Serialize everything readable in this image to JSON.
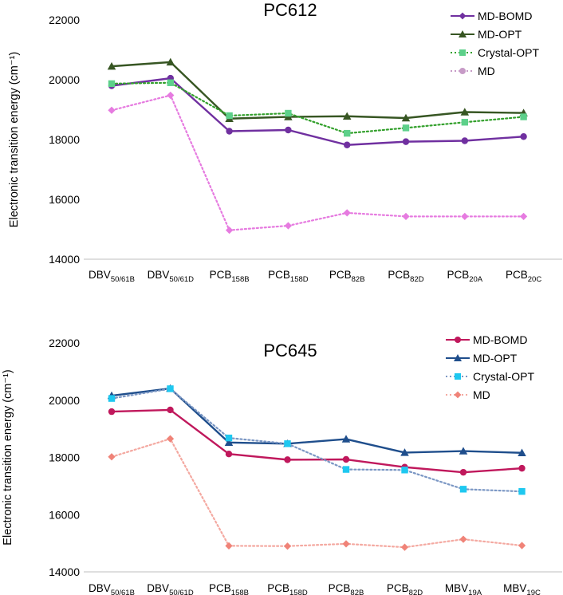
{
  "chart_data": [
    {
      "type": "line",
      "title": "PC612",
      "ylabel": "Electronic transition energy (cm⁻¹)",
      "xlabel": "",
      "ylim": [
        14000,
        22000
      ],
      "yticks": [
        "14000",
        "16000",
        "18000",
        "20000",
        "22000"
      ],
      "categories": [
        {
          "base": "DBV",
          "sub": "50/61B"
        },
        {
          "base": "DBV",
          "sub": "50/61D"
        },
        {
          "base": "PCB",
          "sub": "158B"
        },
        {
          "base": "PCB",
          "sub": "158D"
        },
        {
          "base": "PCB",
          "sub": "82B"
        },
        {
          "base": "PCB",
          "sub": "82D"
        },
        {
          "base": "PCB",
          "sub": "20A"
        },
        {
          "base": "PCB",
          "sub": "20C"
        }
      ],
      "legend_position": "top-right",
      "series": [
        {
          "name": "MD-BOMD",
          "color": "#7030a0",
          "marker": "circle",
          "dashed": false,
          "legend_marker": "diamond",
          "values": [
            19800,
            20050,
            18280,
            18320,
            17820,
            17930,
            17960,
            18100
          ]
        },
        {
          "name": "MD-OPT",
          "color": "#375623",
          "marker": "triangle",
          "dashed": false,
          "values": [
            20450,
            20590,
            18700,
            18760,
            18780,
            18720,
            18920,
            18890
          ]
        },
        {
          "name": "Crystal-OPT",
          "color": "#33a02c",
          "marker_color": "#5dd08a",
          "marker": "square",
          "dashed": true,
          "values": [
            19870,
            19900,
            18800,
            18880,
            18210,
            18390,
            18580,
            18760
          ]
        },
        {
          "name": "MD",
          "color": "#e67be0",
          "marker": "diamond",
          "dashed": true,
          "legend_marker": "circle",
          "legend_color": "#c79bc7",
          "values": [
            18980,
            19480,
            14970,
            15120,
            15550,
            15430,
            15430,
            15430
          ]
        }
      ]
    },
    {
      "type": "line",
      "title": "PC645",
      "ylabel": "Electronic transition energy (cm⁻¹)",
      "xlabel": "",
      "ylim": [
        14000,
        22000
      ],
      "yticks": [
        "14000",
        "16000",
        "18000",
        "20000",
        "22000"
      ],
      "categories": [
        {
          "base": "DBV",
          "sub": "50/61B"
        },
        {
          "base": "DBV",
          "sub": "50/61D"
        },
        {
          "base": "PCB",
          "sub": "158B"
        },
        {
          "base": "PCB",
          "sub": "158D"
        },
        {
          "base": "PCB",
          "sub": "82B"
        },
        {
          "base": "PCB",
          "sub": "82D"
        },
        {
          "base": "MBV",
          "sub": "19A"
        },
        {
          "base": "MBV",
          "sub": "19C"
        }
      ],
      "legend_position": "top-right",
      "series": [
        {
          "name": "MD-BOMD",
          "color": "#c0185c",
          "marker": "circle",
          "dashed": false,
          "values": [
            19600,
            19660,
            18120,
            17920,
            17930,
            17660,
            17480,
            17620
          ]
        },
        {
          "name": "MD-OPT",
          "color": "#1f4e8c",
          "marker": "triangle",
          "dashed": false,
          "values": [
            20160,
            20410,
            18520,
            18480,
            18640,
            18170,
            18220,
            18160
          ]
        },
        {
          "name": "Crystal-OPT",
          "color": "#7b97c4",
          "marker_color": "#1ec8f0",
          "marker": "square",
          "dashed": true,
          "values": [
            20060,
            20400,
            18680,
            18480,
            17580,
            17560,
            16890,
            16810
          ]
        },
        {
          "name": "MD",
          "color": "#f4a9a1",
          "marker_color": "#f08378",
          "marker": "diamond",
          "dashed": true,
          "values": [
            18020,
            18650,
            14910,
            14900,
            14980,
            14860,
            15140,
            14920
          ]
        }
      ]
    }
  ]
}
